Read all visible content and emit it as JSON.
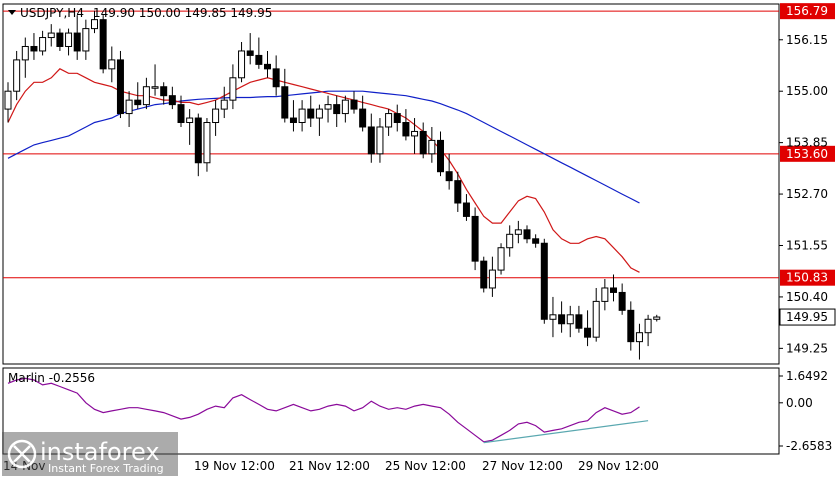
{
  "chart_data": {
    "type": "candlestick",
    "symbol_label": "USDJPY,H4",
    "ohlc_label": "149.90 150.00 149.85 149.95",
    "current_price_label": "149.95",
    "price_axis": {
      "ylim": [
        148.9,
        156.95
      ],
      "tick_labels": [
        "156.15",
        "155.00",
        "153.85",
        "152.70",
        "151.55",
        "150.40",
        "149.25"
      ]
    },
    "horizontal_levels": [
      {
        "value": 156.79,
        "label": "156.79",
        "color": "#e00000"
      },
      {
        "value": 153.6,
        "label": "153.60",
        "color": "#e00000"
      },
      {
        "value": 150.83,
        "label": "150.83",
        "color": "#e00000"
      }
    ],
    "time_axis": {
      "labels": [
        "14 Nov",
        "19 Nov 12:00",
        "21 Nov 12:00",
        "25 Nov 12:00",
        "27 Nov 12:00",
        "29 Nov 12:00"
      ]
    },
    "candles": [
      [
        154.6,
        155.2,
        154.3,
        155.0
      ],
      [
        155.0,
        155.9,
        154.8,
        155.7
      ],
      [
        155.7,
        156.2,
        155.3,
        156.0
      ],
      [
        156.0,
        156.3,
        155.7,
        155.9
      ],
      [
        155.9,
        156.35,
        155.8,
        156.2
      ],
      [
        156.2,
        156.5,
        156.0,
        156.3
      ],
      [
        156.3,
        156.4,
        155.9,
        156.0
      ],
      [
        156.0,
        156.4,
        155.8,
        156.3
      ],
      [
        156.3,
        156.7,
        155.7,
        155.9
      ],
      [
        155.9,
        156.6,
        155.7,
        156.4
      ],
      [
        156.4,
        156.8,
        156.3,
        156.6
      ],
      [
        156.6,
        156.7,
        155.4,
        155.5
      ],
      [
        155.5,
        156.0,
        155.2,
        155.7
      ],
      [
        155.7,
        155.9,
        154.4,
        154.5
      ],
      [
        154.5,
        155.0,
        154.2,
        154.8
      ],
      [
        154.8,
        155.2,
        154.6,
        154.7
      ],
      [
        154.7,
        155.3,
        154.6,
        155.1
      ],
      [
        155.1,
        155.6,
        154.9,
        155.1
      ],
      [
        155.1,
        155.2,
        154.7,
        154.9
      ],
      [
        154.9,
        155.1,
        154.6,
        154.7
      ],
      [
        154.7,
        154.9,
        154.2,
        154.3
      ],
      [
        154.3,
        154.6,
        153.8,
        154.4
      ],
      [
        154.4,
        154.5,
        153.1,
        153.4
      ],
      [
        153.4,
        154.4,
        153.2,
        154.3
      ],
      [
        154.3,
        154.8,
        154.0,
        154.6
      ],
      [
        154.6,
        155.1,
        154.4,
        154.8
      ],
      [
        154.8,
        155.6,
        154.6,
        155.3
      ],
      [
        155.3,
        156.1,
        155.2,
        155.9
      ],
      [
        155.9,
        156.3,
        155.6,
        155.8
      ],
      [
        155.8,
        156.2,
        155.5,
        155.6
      ],
      [
        155.6,
        155.9,
        155.3,
        155.5
      ],
      [
        155.5,
        155.8,
        154.9,
        155.1
      ],
      [
        155.1,
        155.5,
        154.3,
        154.4
      ],
      [
        154.4,
        154.8,
        154.1,
        154.3
      ],
      [
        154.3,
        154.8,
        154.1,
        154.6
      ],
      [
        154.6,
        154.9,
        154.2,
        154.4
      ],
      [
        154.4,
        154.7,
        154.0,
        154.6
      ],
      [
        154.6,
        154.9,
        154.3,
        154.7
      ],
      [
        154.7,
        154.9,
        154.2,
        154.5
      ],
      [
        154.5,
        154.9,
        154.3,
        154.8
      ],
      [
        154.8,
        155.0,
        154.5,
        154.6
      ],
      [
        154.6,
        154.9,
        154.1,
        154.2
      ],
      [
        154.2,
        154.5,
        153.4,
        153.6
      ],
      [
        153.6,
        154.4,
        153.4,
        154.2
      ],
      [
        154.2,
        154.6,
        154.0,
        154.5
      ],
      [
        154.5,
        154.7,
        154.1,
        154.3
      ],
      [
        154.3,
        154.6,
        153.9,
        154.0
      ],
      [
        154.0,
        154.4,
        153.6,
        154.1
      ],
      [
        154.1,
        154.3,
        153.5,
        153.6
      ],
      [
        153.6,
        154.2,
        153.4,
        153.9
      ],
      [
        153.9,
        154.1,
        153.1,
        153.2
      ],
      [
        153.2,
        153.6,
        152.8,
        153.0
      ],
      [
        153.0,
        153.2,
        152.3,
        152.5
      ],
      [
        152.5,
        152.7,
        152.1,
        152.2
      ],
      [
        152.2,
        152.4,
        151.0,
        151.2
      ],
      [
        151.2,
        151.3,
        150.5,
        150.6
      ],
      [
        150.6,
        151.3,
        150.4,
        151.0
      ],
      [
        151.0,
        151.6,
        150.9,
        151.5
      ],
      [
        151.5,
        152.0,
        151.3,
        151.8
      ],
      [
        151.8,
        152.1,
        151.6,
        151.9
      ],
      [
        151.9,
        152.0,
        151.6,
        151.7
      ],
      [
        151.7,
        151.8,
        151.5,
        151.6
      ],
      [
        151.6,
        151.7,
        149.8,
        149.9
      ],
      [
        149.9,
        150.4,
        149.5,
        150.0
      ],
      [
        150.0,
        150.3,
        149.6,
        149.8
      ],
      [
        149.8,
        150.2,
        149.5,
        150.0
      ],
      [
        150.0,
        150.2,
        149.6,
        149.7
      ],
      [
        149.7,
        150.1,
        149.3,
        149.5
      ],
      [
        149.5,
        150.6,
        149.4,
        150.3
      ],
      [
        150.3,
        150.8,
        150.1,
        150.6
      ],
      [
        150.6,
        150.9,
        150.3,
        150.5
      ],
      [
        150.5,
        150.7,
        150.0,
        150.1
      ],
      [
        150.1,
        150.3,
        149.2,
        149.4
      ],
      [
        149.4,
        149.8,
        149.0,
        149.6
      ],
      [
        149.6,
        150.0,
        149.3,
        149.9
      ],
      [
        149.9,
        150.0,
        149.85,
        149.95
      ]
    ],
    "ma_red": [
      154.3,
      154.7,
      155.0,
      155.2,
      155.2,
      155.3,
      155.5,
      155.4,
      155.4,
      155.3,
      155.2,
      155.15,
      155.1,
      155.0,
      154.95,
      154.9,
      154.9,
      154.85,
      154.8,
      154.8,
      154.75,
      154.75,
      154.7,
      154.75,
      154.8,
      154.9,
      155.0,
      155.1,
      155.2,
      155.25,
      155.3,
      155.25,
      155.2,
      155.15,
      155.1,
      155.05,
      155.0,
      154.95,
      154.9,
      154.85,
      154.8,
      154.75,
      154.7,
      154.65,
      154.6,
      154.5,
      154.4,
      154.25,
      154.1,
      153.9,
      153.7,
      153.45,
      153.15,
      152.8,
      152.5,
      152.2,
      152.05,
      152.05,
      152.3,
      152.55,
      152.65,
      152.6,
      152.3,
      151.9,
      151.7,
      151.6,
      151.6,
      151.7,
      151.75,
      151.7,
      151.5,
      151.3,
      151.05,
      150.95
    ],
    "ma_blue": [
      153.5,
      153.6,
      153.7,
      153.8,
      153.85,
      153.9,
      153.95,
      154.0,
      154.1,
      154.2,
      154.3,
      154.35,
      154.4,
      154.5,
      154.55,
      154.6,
      154.65,
      154.7,
      154.72,
      154.75,
      154.78,
      154.8,
      154.82,
      154.83,
      154.84,
      154.85,
      154.86,
      154.86,
      154.86,
      154.87,
      154.88,
      154.88,
      154.9,
      154.92,
      154.94,
      154.96,
      154.98,
      155.0,
      155.0,
      155.0,
      155.0,
      155.0,
      154.98,
      154.96,
      154.94,
      154.92,
      154.9,
      154.86,
      154.82,
      154.78,
      154.72,
      154.65,
      154.58,
      154.5,
      154.4,
      154.3,
      154.2,
      154.1,
      154.0,
      153.9,
      153.8,
      153.7,
      153.6,
      153.5,
      153.4,
      153.3,
      153.2,
      153.1,
      153.0,
      152.9,
      152.8,
      152.7,
      152.6,
      152.5
    ],
    "indicator": {
      "label": "Marlin -0.2556",
      "ylim": [
        -2.6583,
        1.6492
      ],
      "tick_labels": [
        "1.6492",
        "0.00",
        "-2.6583"
      ],
      "values": [
        1.2,
        1.4,
        1.5,
        1.4,
        1.1,
        1.2,
        1.0,
        0.8,
        0.6,
        0.0,
        -0.4,
        -0.6,
        -0.5,
        -0.4,
        -0.3,
        -0.3,
        -0.4,
        -0.5,
        -0.6,
        -0.8,
        -1.0,
        -0.9,
        -0.7,
        -0.4,
        -0.2,
        -0.3,
        0.3,
        0.5,
        0.2,
        -0.1,
        -0.4,
        -0.5,
        -0.3,
        -0.1,
        -0.3,
        -0.5,
        -0.4,
        -0.2,
        -0.1,
        -0.2,
        -0.5,
        -0.3,
        0.1,
        -0.2,
        -0.4,
        -0.3,
        -0.4,
        -0.2,
        -0.1,
        -0.2,
        -0.3,
        -0.7,
        -1.2,
        -1.6,
        -2.0,
        -2.4,
        -2.3,
        -2.0,
        -1.7,
        -1.3,
        -1.2,
        -1.4,
        -1.8,
        -1.7,
        -1.6,
        -1.4,
        -1.2,
        -1.1,
        -0.6,
        -0.3,
        -0.5,
        -0.7,
        -0.6,
        -0.25
      ],
      "trendline": {
        "from_index": 55,
        "from_value": -2.45,
        "to_index": 74,
        "to_value": -1.1,
        "color": "#5aa8b0"
      }
    },
    "colors": {
      "bull": "#ffffff",
      "bear": "#000000",
      "ma_red": "#d01818",
      "ma_blue": "#1020c8",
      "indicator": "#8a0a9a",
      "level": "#e00000"
    }
  },
  "watermark": {
    "brand": "instaforex",
    "tagline": "Instant Forex Trading"
  }
}
